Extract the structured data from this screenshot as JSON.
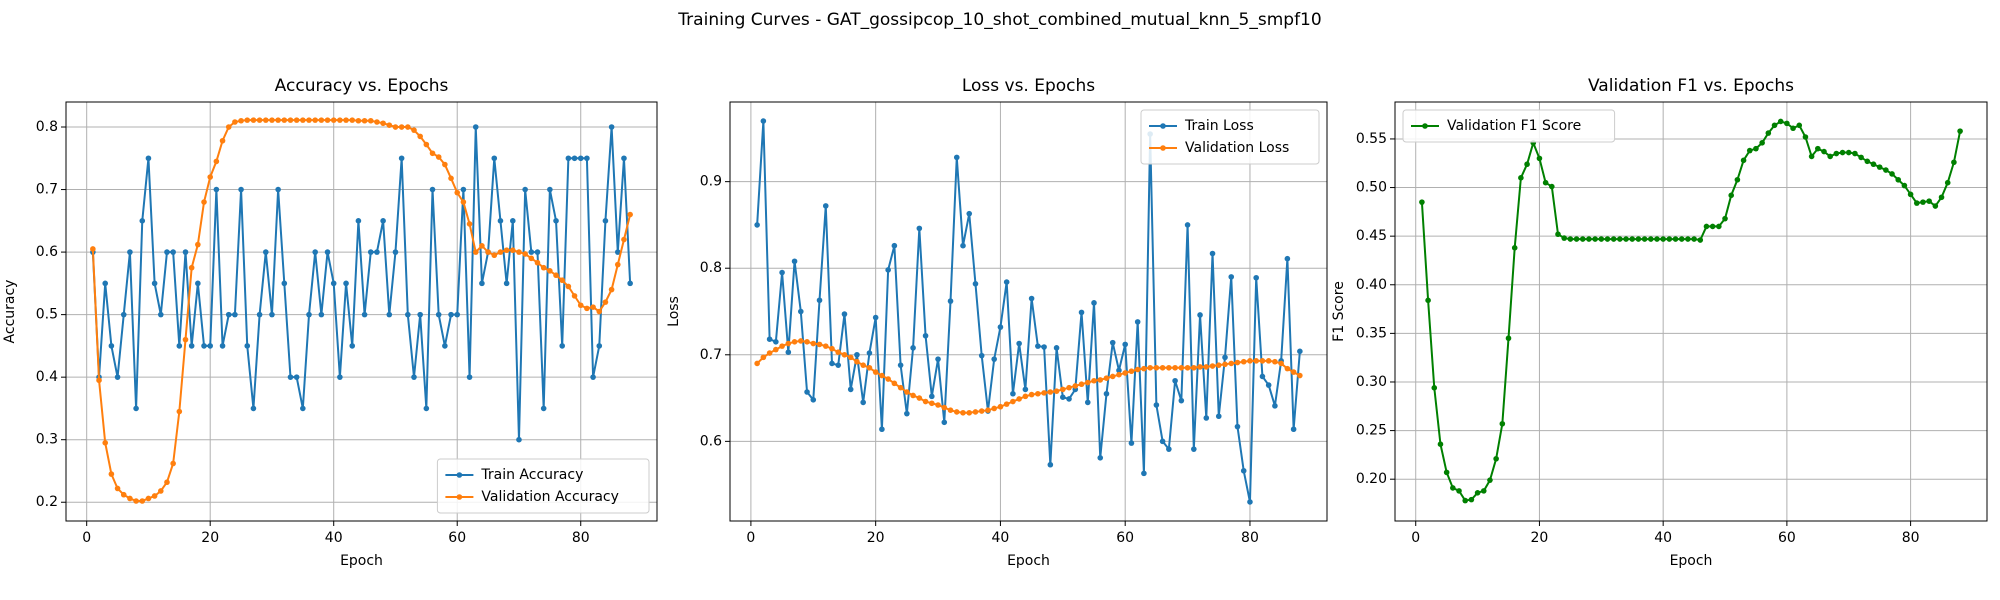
{
  "title": "Training Curves - GAT_gossipcop_10_shot_combined_mutual_knn_5_smpf10",
  "chart_data": [
    {
      "type": "line",
      "title": "Accuracy vs. Epochs",
      "x_label": "Epoch",
      "y_label": "Accuracy",
      "x": [
        1,
        2,
        3,
        4,
        5,
        6,
        7,
        8,
        9,
        10,
        11,
        12,
        13,
        14,
        15,
        16,
        17,
        18,
        19,
        20,
        21,
        22,
        23,
        24,
        25,
        26,
        27,
        28,
        29,
        30,
        31,
        32,
        33,
        34,
        35,
        36,
        37,
        38,
        39,
        40,
        41,
        42,
        43,
        44,
        45,
        46,
        47,
        48,
        49,
        50,
        51,
        52,
        53,
        54,
        55,
        56,
        57,
        58,
        59,
        60,
        61,
        62,
        63,
        64,
        65,
        66,
        67,
        68,
        69,
        70,
        71,
        72,
        73,
        74,
        75,
        76,
        77,
        78,
        79,
        80,
        81,
        82,
        83,
        84,
        85,
        86,
        87,
        88
      ],
      "xlim": [
        -3.35,
        92.35
      ],
      "xticks": [
        0,
        20,
        40,
        60,
        80
      ],
      "ylim": [
        0.17,
        0.84
      ],
      "yticks": [
        0.2,
        0.3,
        0.4,
        0.5,
        0.6,
        0.7,
        0.8
      ],
      "grid": true,
      "legend": "lower right",
      "series": [
        {
          "name": "Train Accuracy",
          "color": "#1f77b4",
          "values": [
            0.6,
            0.4,
            0.55,
            0.45,
            0.4,
            0.5,
            0.6,
            0.35,
            0.65,
            0.75,
            0.55,
            0.5,
            0.6,
            0.6,
            0.45,
            0.6,
            0.45,
            0.55,
            0.45,
            0.45,
            0.7,
            0.45,
            0.5,
            0.5,
            0.7,
            0.45,
            0.35,
            0.5,
            0.6,
            0.5,
            0.7,
            0.55,
            0.4,
            0.4,
            0.35,
            0.5,
            0.6,
            0.5,
            0.6,
            0.55,
            0.4,
            0.55,
            0.45,
            0.65,
            0.5,
            0.6,
            0.6,
            0.65,
            0.5,
            0.6,
            0.75,
            0.5,
            0.4,
            0.5,
            0.35,
            0.7,
            0.5,
            0.45,
            0.5,
            0.5,
            0.7,
            0.4,
            0.8,
            0.55,
            0.6,
            0.75,
            0.65,
            0.55,
            0.65,
            0.3,
            0.7,
            0.6,
            0.6,
            0.35,
            0.7,
            0.65,
            0.45,
            0.75,
            0.75,
            0.75,
            0.75,
            0.4,
            0.45,
            0.65,
            0.8,
            0.6,
            0.75,
            0.55
          ]
        },
        {
          "name": "Validation Accuracy",
          "color": "#ff7f0e",
          "values": [
            0.605,
            0.395,
            0.295,
            0.245,
            0.222,
            0.212,
            0.206,
            0.202,
            0.202,
            0.206,
            0.21,
            0.218,
            0.232,
            0.262,
            0.345,
            0.46,
            0.575,
            0.612,
            0.68,
            0.72,
            0.745,
            0.778,
            0.8,
            0.808,
            0.81,
            0.811,
            0.811,
            0.811,
            0.811,
            0.811,
            0.811,
            0.811,
            0.811,
            0.811,
            0.811,
            0.811,
            0.811,
            0.811,
            0.811,
            0.811,
            0.811,
            0.811,
            0.811,
            0.81,
            0.81,
            0.81,
            0.808,
            0.806,
            0.803,
            0.8,
            0.8,
            0.8,
            0.795,
            0.785,
            0.772,
            0.758,
            0.752,
            0.74,
            0.718,
            0.695,
            0.68,
            0.645,
            0.6,
            0.61,
            0.6,
            0.595,
            0.6,
            0.603,
            0.603,
            0.6,
            0.597,
            0.59,
            0.583,
            0.575,
            0.57,
            0.563,
            0.555,
            0.545,
            0.53,
            0.515,
            0.51,
            0.512,
            0.505,
            0.52,
            0.54,
            0.58,
            0.62,
            0.66
          ]
        }
      ]
    },
    {
      "type": "line",
      "title": "Loss vs. Epochs",
      "x_label": "Epoch",
      "y_label": "Loss",
      "x": [
        1,
        2,
        3,
        4,
        5,
        6,
        7,
        8,
        9,
        10,
        11,
        12,
        13,
        14,
        15,
        16,
        17,
        18,
        19,
        20,
        21,
        22,
        23,
        24,
        25,
        26,
        27,
        28,
        29,
        30,
        31,
        32,
        33,
        34,
        35,
        36,
        37,
        38,
        39,
        40,
        41,
        42,
        43,
        44,
        45,
        46,
        47,
        48,
        49,
        50,
        51,
        52,
        53,
        54,
        55,
        56,
        57,
        58,
        59,
        60,
        61,
        62,
        63,
        64,
        65,
        66,
        67,
        68,
        69,
        70,
        71,
        72,
        73,
        74,
        75,
        76,
        77,
        78,
        79,
        80,
        81,
        82,
        83,
        84,
        85,
        86,
        87,
        88
      ],
      "xlim": [
        -3.35,
        92.35
      ],
      "xticks": [
        0,
        20,
        40,
        60,
        80
      ],
      "ylim": [
        0.508,
        0.992
      ],
      "yticks": [
        0.6,
        0.7,
        0.8,
        0.9
      ],
      "grid": true,
      "legend": "upper right",
      "series": [
        {
          "name": "Train Loss",
          "color": "#1f77b4",
          "values": [
            0.85,
            0.97,
            0.718,
            0.715,
            0.795,
            0.703,
            0.808,
            0.75,
            0.657,
            0.648,
            0.763,
            0.872,
            0.69,
            0.688,
            0.747,
            0.66,
            0.7,
            0.645,
            0.702,
            0.743,
            0.614,
            0.798,
            0.826,
            0.688,
            0.632,
            0.708,
            0.846,
            0.722,
            0.652,
            0.695,
            0.622,
            0.762,
            0.928,
            0.826,
            0.863,
            0.782,
            0.699,
            0.635,
            0.695,
            0.732,
            0.784,
            0.655,
            0.713,
            0.66,
            0.765,
            0.71,
            0.709,
            0.573,
            0.708,
            0.651,
            0.649,
            0.66,
            0.749,
            0.645,
            0.76,
            0.581,
            0.655,
            0.714,
            0.682,
            0.712,
            0.598,
            0.738,
            0.563,
            0.955,
            0.642,
            0.6,
            0.591,
            0.67,
            0.647,
            0.85,
            0.591,
            0.746,
            0.627,
            0.817,
            0.629,
            0.697,
            0.79,
            0.617,
            0.566,
            0.53,
            0.789,
            0.675,
            0.665,
            0.641,
            0.693,
            0.811,
            0.614,
            0.704
          ]
        },
        {
          "name": "Validation Loss",
          "color": "#ff7f0e",
          "values": [
            0.69,
            0.697,
            0.702,
            0.706,
            0.71,
            0.713,
            0.715,
            0.716,
            0.715,
            0.713,
            0.712,
            0.71,
            0.707,
            0.703,
            0.7,
            0.697,
            0.692,
            0.688,
            0.685,
            0.68,
            0.676,
            0.672,
            0.667,
            0.662,
            0.657,
            0.653,
            0.65,
            0.646,
            0.644,
            0.642,
            0.639,
            0.636,
            0.634,
            0.633,
            0.633,
            0.634,
            0.635,
            0.636,
            0.638,
            0.64,
            0.643,
            0.646,
            0.649,
            0.652,
            0.654,
            0.655,
            0.656,
            0.657,
            0.658,
            0.66,
            0.662,
            0.664,
            0.666,
            0.668,
            0.67,
            0.671,
            0.673,
            0.675,
            0.677,
            0.679,
            0.681,
            0.683,
            0.684,
            0.685,
            0.685,
            0.685,
            0.685,
            0.685,
            0.685,
            0.685,
            0.685,
            0.686,
            0.686,
            0.687,
            0.688,
            0.689,
            0.69,
            0.691,
            0.692,
            0.693,
            0.693,
            0.693,
            0.693,
            0.692,
            0.69,
            0.684,
            0.68,
            0.676
          ]
        }
      ]
    },
    {
      "type": "line",
      "title": "Validation F1 vs. Epochs",
      "x_label": "Epoch",
      "y_label": "F1 Score",
      "x": [
        1,
        2,
        3,
        4,
        5,
        6,
        7,
        8,
        9,
        10,
        11,
        12,
        13,
        14,
        15,
        16,
        17,
        18,
        19,
        20,
        21,
        22,
        23,
        24,
        25,
        26,
        27,
        28,
        29,
        30,
        31,
        32,
        33,
        34,
        35,
        36,
        37,
        38,
        39,
        40,
        41,
        42,
        43,
        44,
        45,
        46,
        47,
        48,
        49,
        50,
        51,
        52,
        53,
        54,
        55,
        56,
        57,
        58,
        59,
        60,
        61,
        62,
        63,
        64,
        65,
        66,
        67,
        68,
        69,
        70,
        71,
        72,
        73,
        74,
        75,
        76,
        77,
        78,
        79,
        80,
        81,
        82,
        83,
        84,
        85,
        86,
        87,
        88
      ],
      "xlim": [
        -3.35,
        92.35
      ],
      "xticks": [
        0,
        20,
        40,
        60,
        80
      ],
      "ylim": [
        0.157,
        0.588
      ],
      "yticks": [
        {
          "value": 0.2,
          "label": "0.20"
        },
        0.25,
        {
          "value": 0.3,
          "label": "0.30"
        },
        0.35,
        {
          "value": 0.4,
          "label": "0.40"
        },
        0.45,
        {
          "value": 0.5,
          "label": "0.50"
        },
        0.55
      ],
      "grid": true,
      "legend": "upper left",
      "series": [
        {
          "name": "Validation F1 Score",
          "color": "#008000",
          "values": [
            0.485,
            0.384,
            0.294,
            0.236,
            0.207,
            0.191,
            0.188,
            0.178,
            0.179,
            0.186,
            0.188,
            0.199,
            0.221,
            0.257,
            0.345,
            0.438,
            0.51,
            0.524,
            0.546,
            0.53,
            0.505,
            0.501,
            0.452,
            0.448,
            0.447,
            0.447,
            0.447,
            0.447,
            0.447,
            0.447,
            0.447,
            0.447,
            0.447,
            0.447,
            0.447,
            0.447,
            0.447,
            0.447,
            0.447,
            0.447,
            0.447,
            0.447,
            0.447,
            0.447,
            0.447,
            0.446,
            0.46,
            0.46,
            0.46,
            0.468,
            0.492,
            0.508,
            0.528,
            0.538,
            0.54,
            0.546,
            0.556,
            0.564,
            0.568,
            0.566,
            0.561,
            0.564,
            0.552,
            0.532,
            0.54,
            0.537,
            0.532,
            0.535,
            0.536,
            0.536,
            0.535,
            0.531,
            0.527,
            0.524,
            0.521,
            0.518,
            0.514,
            0.508,
            0.502,
            0.493,
            0.484,
            0.485,
            0.486,
            0.481,
            0.49,
            0.505,
            0.526,
            0.558
          ]
        }
      ]
    }
  ]
}
